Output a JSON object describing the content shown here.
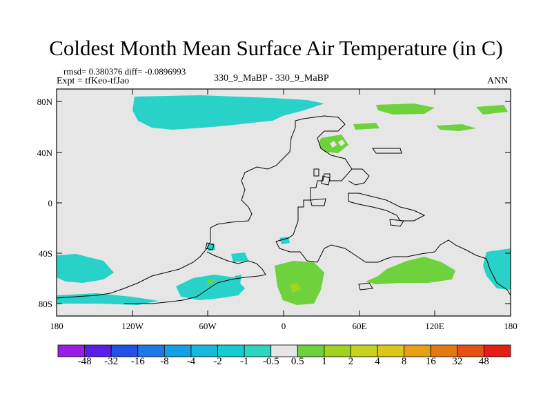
{
  "title": "Coldest Month Mean Surface Air Temperature (in C)",
  "stats": "rmsd= 0.380376 diff= -0.0896993",
  "experiment": "Expt = tfKeo-tfJao",
  "subtitle": "330_9_MaBP - 330_9_MaBP",
  "season": "ANN",
  "lat_ticks": [
    "80N",
    "40N",
    "0",
    "40S",
    "80S"
  ],
  "lon_ticks": [
    "180",
    "120W",
    "60W",
    "0",
    "60E",
    "120E",
    "180"
  ],
  "colorbar": {
    "labels": [
      "-48",
      "-32",
      "-16",
      "-8",
      "-4",
      "-2",
      "-1",
      "-0.5",
      "0.5",
      "1",
      "2",
      "4",
      "8",
      "16",
      "32",
      "48"
    ],
    "colors": [
      "#9b1ee6",
      "#5a1ee6",
      "#2050e6",
      "#1e78e6",
      "#14a0e6",
      "#14b9dc",
      "#14cdd2",
      "#28d7be",
      "#e6e6e6",
      "#6ed23c",
      "#a0d21e",
      "#c8d21e",
      "#dcc814",
      "#e6a014",
      "#e67814",
      "#e65014",
      "#e61e14"
    ]
  },
  "colors": {
    "background": "#e6e6e6",
    "cool_anomaly": "#28d2c8",
    "cool_anomaly_light": "#50dcc8",
    "warm_anomaly": "#6ed23c",
    "warm_anomaly_strong": "#a0d21e"
  }
}
